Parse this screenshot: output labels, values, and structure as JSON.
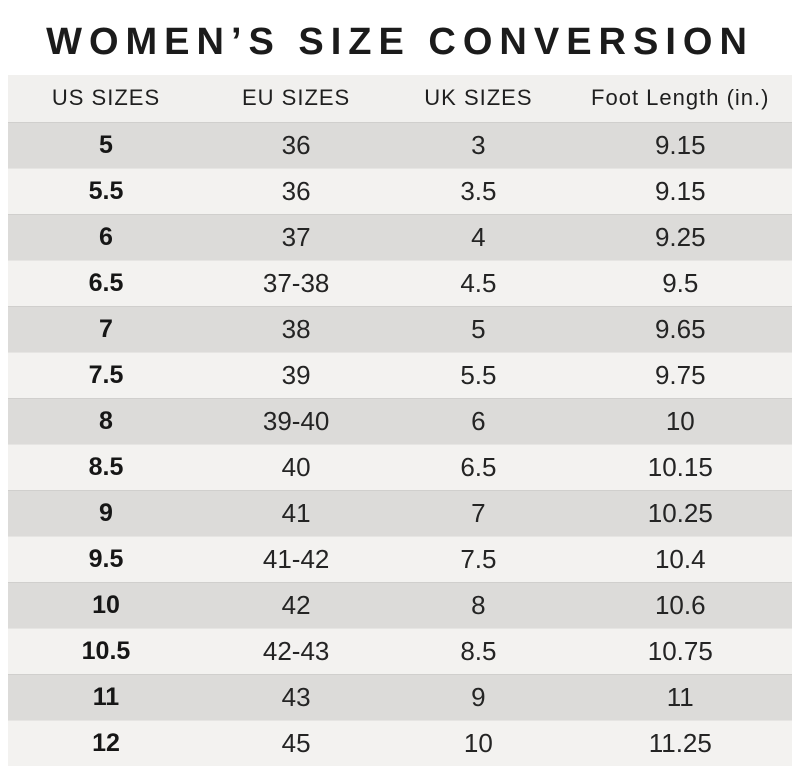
{
  "title": "WOMEN’S SIZE CONVERSION",
  "colors": {
    "background": "#ffffff",
    "header_row_bg": "#f1f0ee",
    "row_dark_bg": "#dcdbd9",
    "row_light_bg": "#f3f2f0",
    "title_text": "#1b1b1b",
    "cell_text": "#242424"
  },
  "chart_data": {
    "type": "table",
    "title": "WOMEN’S SIZE CONVERSION",
    "columns": [
      "US SIZES",
      "EU SIZES",
      "UK SIZES",
      "Foot Length (in.)"
    ],
    "rows": [
      [
        "5",
        "36",
        "3",
        "9.15"
      ],
      [
        "5.5",
        "36",
        "3.5",
        "9.15"
      ],
      [
        "6",
        "37",
        "4",
        "9.25"
      ],
      [
        "6.5",
        "37-38",
        "4.5",
        "9.5"
      ],
      [
        "7",
        "38",
        "5",
        "9.65"
      ],
      [
        "7.5",
        "39",
        "5.5",
        "9.75"
      ],
      [
        "8",
        "39-40",
        "6",
        "10"
      ],
      [
        "8.5",
        "40",
        "6.5",
        "10.15"
      ],
      [
        "9",
        "41",
        "7",
        "10.25"
      ],
      [
        "9.5",
        "41-42",
        "7.5",
        "10.4"
      ],
      [
        "10",
        "42",
        "8",
        "10.6"
      ],
      [
        "10.5",
        "42-43",
        "8.5",
        "10.75"
      ],
      [
        "11",
        "43",
        "9",
        "11"
      ],
      [
        "12",
        "45",
        "10",
        "11.25"
      ]
    ],
    "layout": {
      "striped": true,
      "first_data_row_shade": "dark",
      "header_position": "top"
    }
  }
}
